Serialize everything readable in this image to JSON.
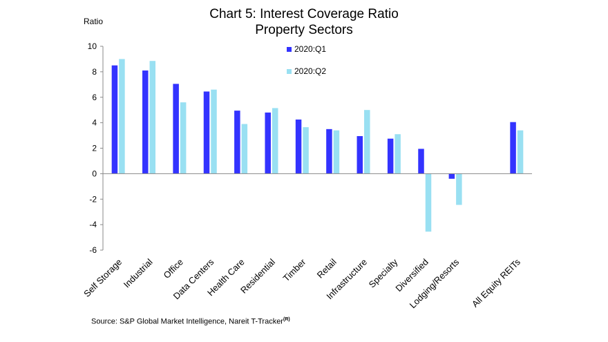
{
  "chart_data": {
    "type": "bar",
    "title": "Chart 5: Interest Coverage Ratio",
    "subtitle": "Property Sectors",
    "ylabel": "Ratio",
    "xlabel": "",
    "ylim": [
      -6,
      10
    ],
    "yticks": [
      "10",
      "8",
      "6",
      "4",
      "2",
      "0",
      "-2",
      "-4",
      "-6"
    ],
    "categories": [
      "Self Storage",
      "Industrial",
      "Office",
      "Data Centers",
      "Health Care",
      "Residential",
      "Timber",
      "Retail",
      "Infrastructure",
      "Specialty",
      "Diversified",
      "Lodging/Resorts",
      "",
      "All Equity REITs"
    ],
    "series": [
      {
        "name": "2020:Q1",
        "color": "#3333ff",
        "values": [
          8.5,
          8.1,
          7.05,
          6.45,
          4.95,
          4.8,
          4.25,
          3.5,
          2.95,
          2.75,
          1.95,
          -0.4,
          null,
          4.05
        ]
      },
      {
        "name": "2020:Q2",
        "color": "#99e0f2",
        "values": [
          9.0,
          8.85,
          5.6,
          6.6,
          3.9,
          5.15,
          3.65,
          3.4,
          5.0,
          3.1,
          -4.55,
          -2.45,
          null,
          3.4
        ]
      }
    ],
    "legend_position": "top-center",
    "grid": false
  },
  "source": {
    "text": "Source: S&P Global Market Intelligence, Nareit T-Tracker",
    "superscript": "(R)"
  }
}
